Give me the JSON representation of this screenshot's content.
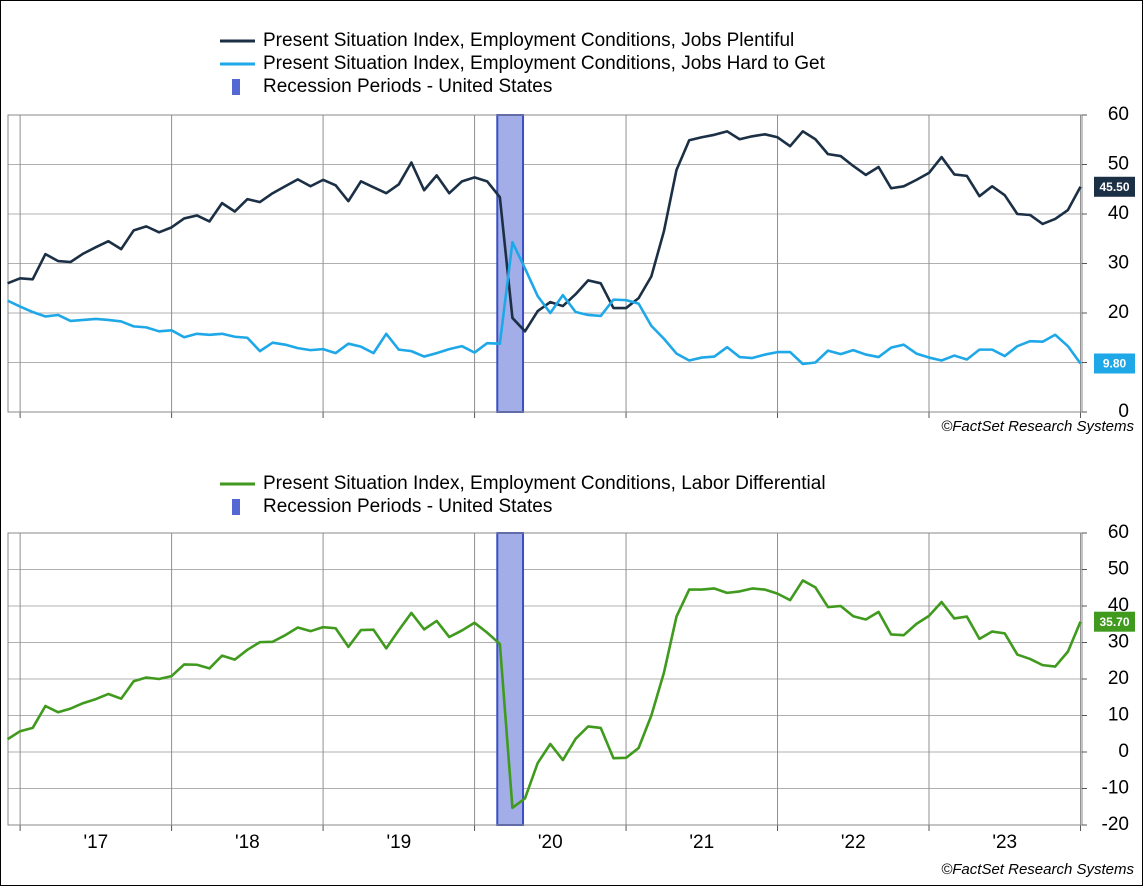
{
  "chart_data": [
    {
      "type": "line",
      "x": [
        2016.917,
        2017,
        2017.083,
        2017.167,
        2017.25,
        2017.333,
        2017.417,
        2017.5,
        2017.583,
        2017.667,
        2017.75,
        2017.833,
        2017.917,
        2018,
        2018.083,
        2018.167,
        2018.25,
        2018.333,
        2018.417,
        2018.5,
        2018.583,
        2018.667,
        2018.75,
        2018.833,
        2018.917,
        2019,
        2019.083,
        2019.167,
        2019.25,
        2019.333,
        2019.417,
        2019.5,
        2019.583,
        2019.667,
        2019.75,
        2019.833,
        2019.917,
        2020,
        2020.083,
        2020.167,
        2020.25,
        2020.333,
        2020.417,
        2020.5,
        2020.583,
        2020.667,
        2020.75,
        2020.833,
        2020.917,
        2021,
        2021.083,
        2021.167,
        2021.25,
        2021.333,
        2021.417,
        2021.5,
        2021.583,
        2021.667,
        2021.75,
        2021.833,
        2021.917,
        2022,
        2022.083,
        2022.167,
        2022.25,
        2022.333,
        2022.417,
        2022.5,
        2022.583,
        2022.667,
        2022.75,
        2022.833,
        2022.917,
        2023,
        2023.083,
        2023.167,
        2023.25,
        2023.333,
        2023.417,
        2023.5,
        2023.583,
        2023.667,
        2023.75,
        2023.833,
        2023.917,
        2024
      ],
      "series": [
        {
          "name": "Present Situation Index, Employment Conditions, Jobs Plentiful",
          "color": "#1b2f45",
          "values": [
            26,
            27,
            26.8,
            31.9,
            30.5,
            30.3,
            32,
            33.3,
            34.5,
            32.9,
            36.7,
            37.5,
            36.3,
            37.3,
            39.1,
            39.7,
            38.5,
            42.2,
            40.5,
            43,
            42.4,
            44.2,
            45.6,
            47,
            45.6,
            46.9,
            45.8,
            42.6,
            46.6,
            45.4,
            44.2,
            46,
            50.4,
            44.8,
            47.8,
            44.2,
            46.6,
            47.4,
            46.6,
            43.4,
            19,
            16.3,
            20.4,
            22.2,
            21.4,
            23.8,
            26.6,
            26,
            21,
            21,
            23,
            27.4,
            36.5,
            48.9,
            54.9,
            55.5,
            56,
            56.7,
            55.1,
            55.7,
            56.1,
            55.5,
            53.7,
            56.7,
            55.1,
            52.1,
            51.7,
            49.7,
            47.9,
            49.5,
            45.2,
            45.6,
            46.9,
            48.3,
            51.5,
            48,
            47.7,
            43.6,
            45.6,
            43.8,
            40,
            39.8,
            38,
            39,
            40.8,
            45.5
          ],
          "value_labels": [
            null,
            null,
            null,
            null,
            null,
            null,
            null,
            null,
            null,
            null,
            null,
            null,
            null,
            null,
            null,
            null,
            null,
            null,
            null,
            null,
            null,
            null,
            null,
            null,
            null,
            null,
            null,
            null,
            null,
            null,
            null,
            null,
            null,
            null,
            null,
            null,
            null,
            null,
            null,
            null,
            null,
            null,
            null,
            null,
            null,
            null,
            null,
            null,
            null,
            null,
            null,
            null,
            null,
            null,
            null,
            null,
            null,
            null,
            null,
            null,
            null,
            null,
            null,
            null,
            null,
            null,
            null,
            null,
            null,
            null,
            null,
            null,
            null,
            null,
            null,
            null,
            null,
            null,
            null,
            null,
            null,
            null,
            null,
            null,
            null,
            "45.50"
          ]
        },
        {
          "name": "Present Situation Index, Employment Conditions, Jobs Hard to Get",
          "color": "#1fa8e8",
          "values": [
            22.5,
            21.3,
            20.2,
            19.3,
            19.6,
            18.4,
            18.6,
            18.8,
            18.6,
            18.3,
            17.3,
            17.1,
            16.3,
            16.5,
            15.1,
            15.8,
            15.6,
            15.8,
            15.2,
            15,
            12.3,
            14,
            13.6,
            12.9,
            12.5,
            12.7,
            11.9,
            13.8,
            13.2,
            11.9,
            15.8,
            12.6,
            12.3,
            11.2,
            11.9,
            12.7,
            13.3,
            12,
            13.9,
            13.8,
            34.3,
            29,
            23.4,
            20,
            23.6,
            20.2,
            19.6,
            19.4,
            22.7,
            22.6,
            21.9,
            17.4,
            14.8,
            11.8,
            10.4,
            11,
            11.2,
            13.1,
            11.1,
            10.9,
            11.6,
            12.1,
            12.1,
            9.7,
            10,
            12.4,
            11.7,
            12.5,
            11.6,
            11.1,
            13,
            13.6,
            11.8,
            11,
            10.4,
            11.4,
            10.6,
            12.6,
            12.6,
            11.3,
            13.3,
            14.3,
            14.2,
            15.6,
            13.3,
            9.8
          ],
          "value_labels": [
            null,
            null,
            null,
            null,
            null,
            null,
            null,
            null,
            null,
            null,
            null,
            null,
            null,
            null,
            null,
            null,
            null,
            null,
            null,
            null,
            null,
            null,
            null,
            null,
            null,
            null,
            null,
            null,
            null,
            null,
            null,
            null,
            null,
            null,
            null,
            null,
            null,
            null,
            null,
            null,
            null,
            null,
            null,
            null,
            null,
            null,
            null,
            null,
            null,
            null,
            null,
            null,
            null,
            null,
            null,
            null,
            null,
            null,
            null,
            null,
            null,
            null,
            null,
            null,
            null,
            null,
            null,
            null,
            null,
            null,
            null,
            null,
            null,
            null,
            null,
            null,
            null,
            null,
            null,
            null,
            null,
            null,
            null,
            null,
            null,
            "9.80"
          ]
        }
      ],
      "bands": [
        {
          "name": "Recession Periods - United States",
          "color": "#a3aee8",
          "start": 2020.15,
          "end": 2020.32
        }
      ],
      "xlim": [
        2016.92,
        2024.01
      ],
      "xgrid": [
        2017,
        2018,
        2019,
        2020,
        2021,
        2022,
        2023,
        2024
      ],
      "ylim": [
        0,
        60
      ],
      "yticks": [
        0,
        10,
        20,
        30,
        40,
        50,
        60
      ],
      "grid": true,
      "source": "©FactSet Research Systems"
    },
    {
      "type": "line",
      "x": [
        2016.917,
        2017,
        2017.083,
        2017.167,
        2017.25,
        2017.333,
        2017.417,
        2017.5,
        2017.583,
        2017.667,
        2017.75,
        2017.833,
        2017.917,
        2018,
        2018.083,
        2018.167,
        2018.25,
        2018.333,
        2018.417,
        2018.5,
        2018.583,
        2018.667,
        2018.75,
        2018.833,
        2018.917,
        2019,
        2019.083,
        2019.167,
        2019.25,
        2019.333,
        2019.417,
        2019.5,
        2019.583,
        2019.667,
        2019.75,
        2019.833,
        2019.917,
        2020,
        2020.083,
        2020.167,
        2020.25,
        2020.333,
        2020.417,
        2020.5,
        2020.583,
        2020.667,
        2020.75,
        2020.833,
        2020.917,
        2021,
        2021.083,
        2021.167,
        2021.25,
        2021.333,
        2021.417,
        2021.5,
        2021.583,
        2021.667,
        2021.75,
        2021.833,
        2021.917,
        2022,
        2022.083,
        2022.167,
        2022.25,
        2022.333,
        2022.417,
        2022.5,
        2022.583,
        2022.667,
        2022.75,
        2022.833,
        2022.917,
        2023,
        2023.083,
        2023.167,
        2023.25,
        2023.333,
        2023.417,
        2023.5,
        2023.583,
        2023.667,
        2023.75,
        2023.833,
        2023.917,
        2024
      ],
      "series": [
        {
          "name": "Present Situation Index, Employment Conditions, Labor Differential",
          "color": "#3f9a1d",
          "values": [
            3.5,
            5.7,
            6.6,
            12.6,
            10.9,
            11.9,
            13.4,
            14.5,
            15.9,
            14.6,
            19.4,
            20.4,
            20,
            20.8,
            24,
            23.9,
            22.9,
            26.4,
            25.3,
            28,
            30.1,
            30.2,
            32,
            34.1,
            33.1,
            34.2,
            33.9,
            28.8,
            33.4,
            33.5,
            28.4,
            33.4,
            38.1,
            33.6,
            35.9,
            31.5,
            33.3,
            35.4,
            32.7,
            29.6,
            -15.3,
            -12.7,
            -3,
            2.2,
            -2.2,
            3.6,
            7,
            6.6,
            -1.7,
            -1.6,
            1.1,
            10,
            21.7,
            37.1,
            44.5,
            44.5,
            44.8,
            43.6,
            44,
            44.8,
            44.5,
            43.4,
            41.6,
            47,
            45.1,
            39.7,
            40,
            37.2,
            36.3,
            38.4,
            32.2,
            32,
            35.1,
            37.3,
            41.1,
            36.6,
            37.1,
            31,
            33,
            32.5,
            26.7,
            25.5,
            23.8,
            23.4,
            27.5,
            35.7
          ],
          "value_labels": [
            null,
            null,
            null,
            null,
            null,
            null,
            null,
            null,
            null,
            null,
            null,
            null,
            null,
            null,
            null,
            null,
            null,
            null,
            null,
            null,
            null,
            null,
            null,
            null,
            null,
            null,
            null,
            null,
            null,
            null,
            null,
            null,
            null,
            null,
            null,
            null,
            null,
            null,
            null,
            null,
            null,
            null,
            null,
            null,
            null,
            null,
            null,
            null,
            null,
            null,
            null,
            null,
            null,
            null,
            null,
            null,
            null,
            null,
            null,
            null,
            null,
            null,
            null,
            null,
            null,
            null,
            null,
            null,
            null,
            null,
            null,
            null,
            null,
            null,
            null,
            null,
            null,
            null,
            null,
            null,
            null,
            null,
            null,
            null,
            null,
            "35.70"
          ]
        }
      ],
      "bands": [
        {
          "name": "Recession Periods - United States",
          "color": "#a3aee8",
          "start": 2020.15,
          "end": 2020.32
        }
      ],
      "xlim": [
        2016.92,
        2024.01
      ],
      "xgrid": [
        2017,
        2018,
        2019,
        2020,
        2021,
        2022,
        2023,
        2024
      ],
      "xticks": [
        {
          "value": 2017.5,
          "label": "'17"
        },
        {
          "value": 2018.5,
          "label": "'18"
        },
        {
          "value": 2019.5,
          "label": "'19"
        },
        {
          "value": 2020.5,
          "label": "'20"
        },
        {
          "value": 2021.5,
          "label": "'21"
        },
        {
          "value": 2022.5,
          "label": "'22"
        },
        {
          "value": 2023.5,
          "label": "'23"
        }
      ],
      "ylim": [
        -20,
        60
      ],
      "yticks": [
        -20,
        -10,
        0,
        10,
        20,
        30,
        40,
        50,
        60
      ],
      "grid": true,
      "source": "©FactSet Research Systems"
    }
  ]
}
